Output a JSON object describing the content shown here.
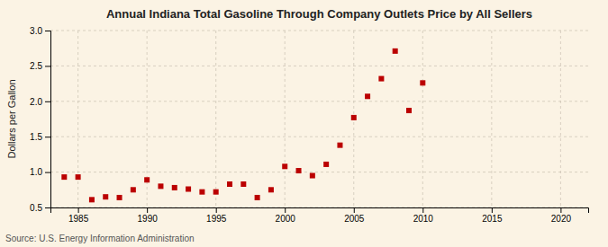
{
  "chart_data": {
    "type": "scatter",
    "title": "Annual Indiana Total Gasoline Through Company Outlets Price by All Sellers",
    "ylabel": "Dollars per Gallon",
    "annotations": [
      "Source: U.S. Energy Information Administration"
    ],
    "x": [
      1984,
      1985,
      1986,
      1987,
      1988,
      1989,
      1990,
      1991,
      1992,
      1993,
      1994,
      1995,
      1996,
      1997,
      1998,
      1999,
      2000,
      2001,
      2002,
      2003,
      2004,
      2005,
      2006,
      2007,
      2008,
      2009,
      2010
    ],
    "values": [
      0.93,
      0.93,
      0.61,
      0.65,
      0.64,
      0.75,
      0.89,
      0.8,
      0.78,
      0.76,
      0.72,
      0.72,
      0.83,
      0.83,
      0.64,
      0.75,
      1.08,
      1.02,
      0.95,
      1.11,
      1.38,
      1.77,
      2.07,
      2.32,
      2.71,
      1.87,
      2.26
    ],
    "xlim": [
      1983,
      2022
    ],
    "ylim": [
      0.5,
      3.0
    ],
    "xticks": [
      1985,
      1990,
      1995,
      2000,
      2005,
      2010,
      2015,
      2020
    ],
    "yticks": [
      0.5,
      {
        "value": 1.0,
        "label": "1.0"
      },
      1.5,
      {
        "value": 2.0,
        "label": "2.0"
      },
      2.5,
      {
        "value": 3.0,
        "label": "3.0"
      }
    ],
    "color": "#bb0000",
    "marker": "square",
    "grid": true
  }
}
